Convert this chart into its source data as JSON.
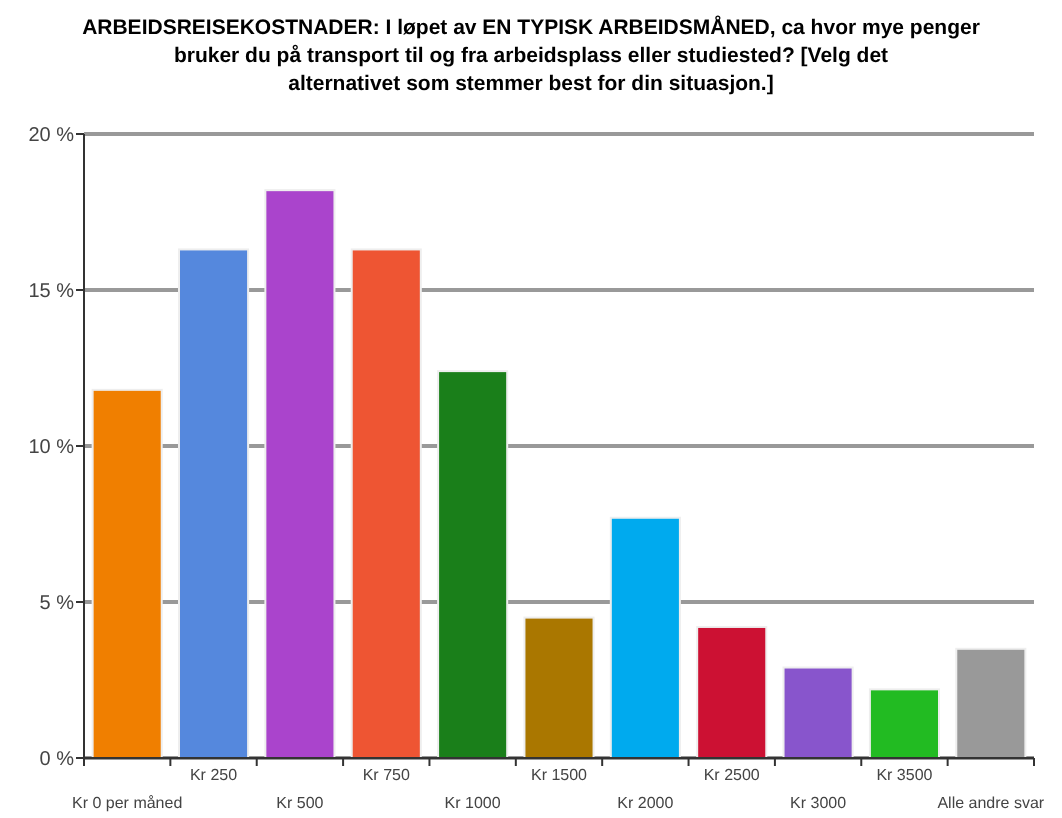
{
  "chart_data": {
    "type": "bar",
    "title": "ARBEIDSREISEKOSTNADER: I løpet av EN TYPISK ARBEIDSMÅNED, ca hvor mye penger bruker du på transport til og fra arbeidsplass eller studiested? [Velg det alternativet som stemmer best for din situasjon.]",
    "categories": [
      "Kr 0 per måned",
      "Kr 250",
      "Kr 500",
      "Kr 750",
      "Kr 1000",
      "Kr 1500",
      "Kr 2000",
      "Kr 2500",
      "Kr 3000",
      "Kr 3500",
      "Alle andre svar"
    ],
    "values": [
      11.8,
      16.3,
      18.2,
      16.3,
      12.4,
      4.5,
      7.7,
      4.2,
      2.9,
      2.2,
      3.5
    ],
    "colors": [
      "#f07f00",
      "#5588dd",
      "#aa44cc",
      "#ee5533",
      "#1a7f1a",
      "#aa7700",
      "#00aaee",
      "#cc1133",
      "#8855cc",
      "#22bb22",
      "#999999"
    ],
    "ylim": [
      0,
      20
    ],
    "yticks": [
      {
        "value": 0,
        "label": "0 %"
      },
      {
        "value": 5,
        "label": "5 %"
      },
      {
        "value": 10,
        "label": "10 %"
      },
      {
        "value": 15,
        "label": "15 %"
      },
      {
        "value": 20,
        "label": "20 %"
      }
    ],
    "grid": "y"
  }
}
